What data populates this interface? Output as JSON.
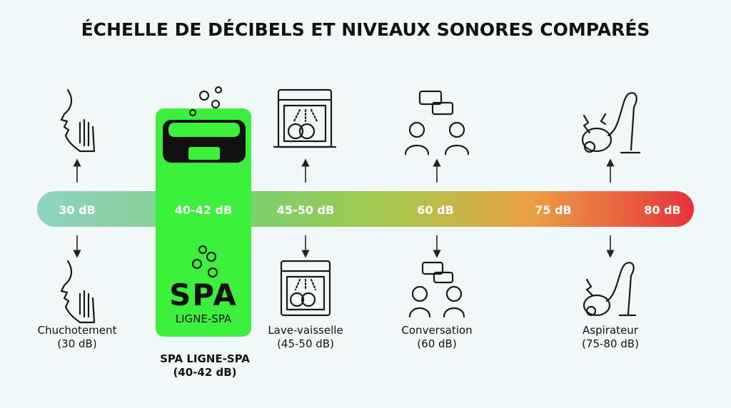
{
  "title": "ÉCHELLE DE DÉCIBELS ET NIVEAUX SONORES COMPARÉS",
  "scale_labels": [
    "30 dB",
    "40-42 dB",
    "45-50 dB",
    "60 dB",
    "75 dB",
    "80 dB"
  ],
  "logo": {
    "brand": "SPA",
    "sub": "LIGNE-SPA"
  },
  "items": [
    {
      "name": "Chuchotement",
      "level": "(30 dB)"
    },
    {
      "name": "SPA LIGNE-SPA",
      "level": "(40-42 dB)"
    },
    {
      "name": "Lave-vaisselle",
      "level": "(45-50 dB)"
    },
    {
      "name": "Conversation",
      "level": "(60 dB)"
    },
    {
      "name": "Aspirateur",
      "level": "(75-80 dB)"
    }
  ]
}
